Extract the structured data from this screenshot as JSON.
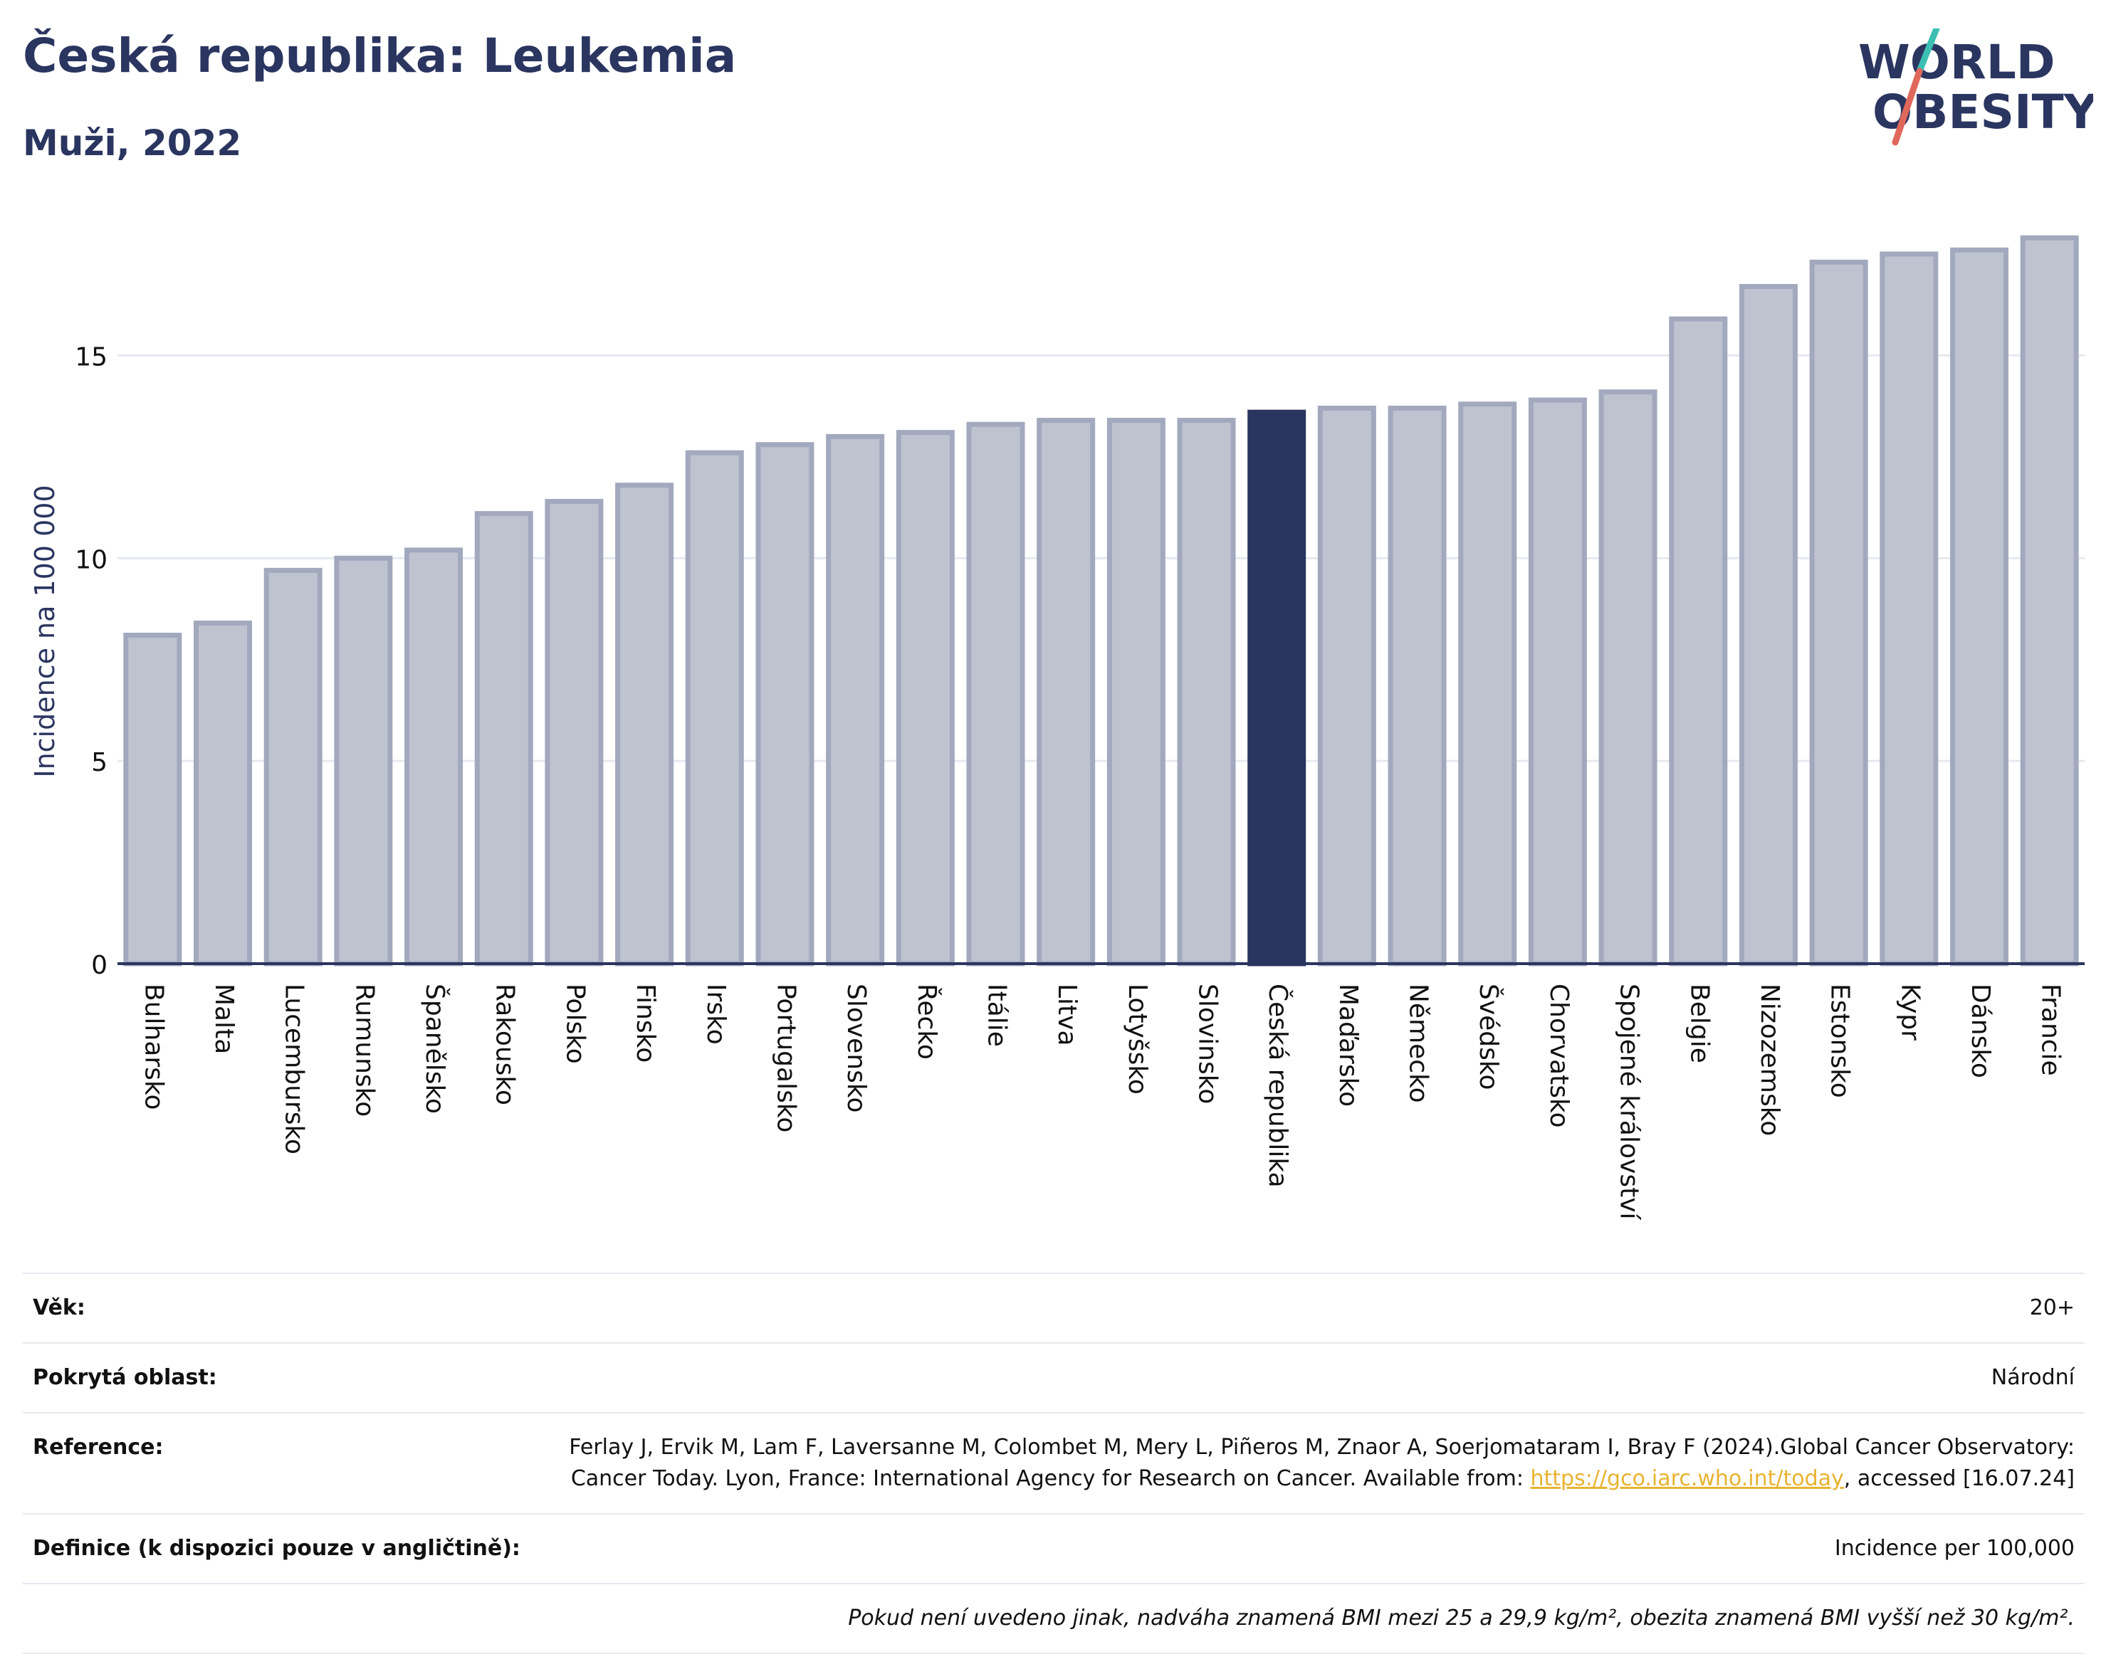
{
  "header": {
    "title": "Česká republika: Leukemia",
    "subtitle": "Muži, 2022",
    "logo_line1": "WORLD",
    "logo_line2": "OBESITY"
  },
  "colors": {
    "bar": "#bfc3d0",
    "bar_border": "#a2a9be",
    "highlight": "#2a3560",
    "grid": "#e6e9ef",
    "text": "#2a3560",
    "link": "#e8b330",
    "logo_teal": "#3bbfb3",
    "logo_red": "#e0685a"
  },
  "chart_data": {
    "type": "bar",
    "ylabel": "Incidence na 100 000",
    "ylim": [
      0,
      18.5
    ],
    "yticks": [
      0,
      5,
      10,
      15
    ],
    "grid": true,
    "highlight": "Česká republika",
    "categories": [
      "Bulharsko",
      "Malta",
      "Lucembursko",
      "Rumunsko",
      "Španělsko",
      "Rakousko",
      "Polsko",
      "Finsko",
      "Irsko",
      "Portugalsko",
      "Slovensko",
      "Řecko",
      "Itálie",
      "Litva",
      "Lotyšsko",
      "Slovinsko",
      "Česká republika",
      "Maďarsko",
      "Německo",
      "Švédsko",
      "Chorvatsko",
      "Spojené království",
      "Belgie",
      "Nizozemsko",
      "Estonsko",
      "Kypr",
      "Dánsko",
      "Francie"
    ],
    "values": [
      8.1,
      8.4,
      9.7,
      10.0,
      10.2,
      11.1,
      11.4,
      11.8,
      12.6,
      12.8,
      13.0,
      13.1,
      13.3,
      13.4,
      13.4,
      13.4,
      13.6,
      13.7,
      13.7,
      13.8,
      13.9,
      14.1,
      15.9,
      16.7,
      17.3,
      17.5,
      17.6,
      17.9
    ]
  },
  "info": {
    "age_label": "Věk:",
    "age_value": "20+",
    "area_label": "Pokrytá oblast:",
    "area_value": "Národní",
    "ref_label": "Reference:",
    "ref_text_1": "Ferlay J, Ervik M, Lam F, Laversanne M, Colombet M, Mery L, Piñeros M, Znaor A, Soerjomataram I, Bray F (2024).Global Cancer Observatory: Cancer Today. Lyon, France: International Agency for Research on Cancer. Available from: ",
    "ref_link": "https://gco.iarc.who.int/today",
    "ref_text_2": ", accessed [16.07.24]",
    "def_label": "Definice (k dispozici pouze v angličtině):",
    "def_value": "Incidence per 100,000",
    "note": "Pokud není uvedeno jinak, nadváha znamená BMI mezi 25 a 29,9 kg/m², obezita znamená BMI vyšší než 30 kg/m²."
  }
}
